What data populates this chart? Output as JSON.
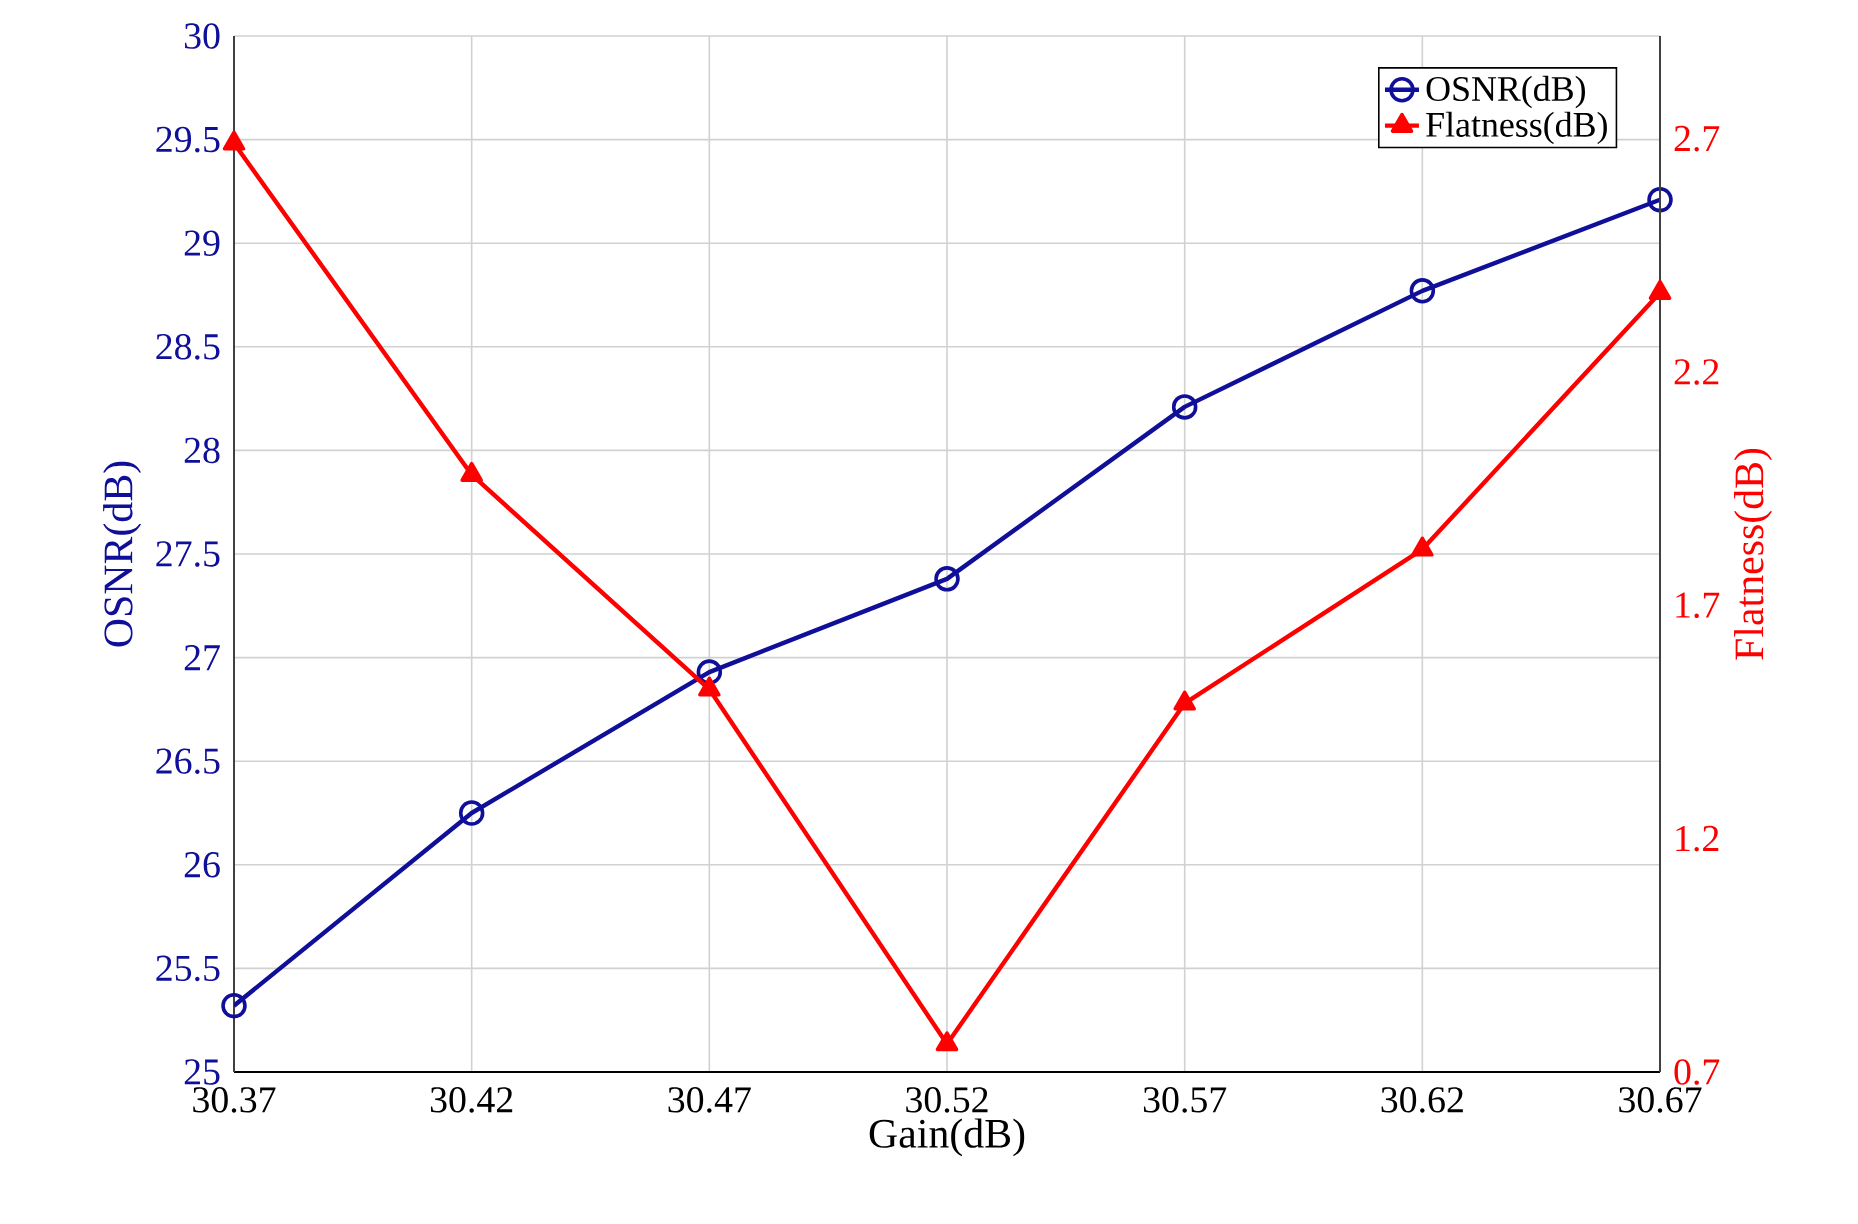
{
  "chart_data": {
    "type": "line",
    "xlabel": "Gain(dB)",
    "ylabel": "OSNR(dB)",
    "y2label": "Flatness(dB)",
    "x": [
      30.37,
      30.42,
      30.47,
      30.52,
      30.57,
      30.62,
      30.67
    ],
    "series": [
      {
        "name": "OSNR(dB)",
        "color": "#0f0f9a",
        "marker": "circle",
        "axis": "y",
        "values": [
          25.32,
          26.25,
          26.93,
          27.38,
          28.21,
          28.77,
          29.21
        ]
      },
      {
        "name": "Flatness(dB)",
        "color": "#ff0000",
        "marker": "triangle",
        "axis": "y2",
        "values": [
          2.69,
          1.98,
          1.52,
          0.76,
          1.49,
          1.82,
          2.37
        ]
      }
    ],
    "xlim": [
      30.37,
      30.67
    ],
    "xticks": [
      30.37,
      30.42,
      30.47,
      30.52,
      30.57,
      30.62,
      30.67
    ],
    "ylim": [
      25,
      30
    ],
    "yticks": [
      25,
      25.5,
      26,
      26.5,
      27,
      27.5,
      28,
      28.5,
      29,
      29.5,
      30
    ],
    "y2lim": [
      0.7,
      2.92
    ],
    "y2ticks": [
      0.7,
      1.2,
      1.7,
      2.2,
      2.7
    ],
    "grid": true,
    "legend": "top right"
  }
}
